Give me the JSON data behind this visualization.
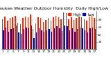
{
  "title": "Milwaukee Weather Outdoor Humidity",
  "subtitle": "Daily High/Low",
  "legend_high": "High",
  "legend_low": "Low",
  "color_high": "#ff2200",
  "color_low": "#0000cc",
  "background_color": "#ffffff",
  "ylabel_right_values": [
    20,
    40,
    60,
    80
  ],
  "ylim": [
    0,
    105
  ],
  "highs": [
    82,
    90,
    78,
    85,
    88,
    92,
    72,
    68,
    85,
    90,
    88,
    95,
    55,
    70,
    88,
    85,
    75,
    80,
    85,
    78,
    88,
    92,
    88,
    82,
    100,
    98,
    82,
    88,
    80,
    85,
    90,
    88,
    82,
    78,
    90,
    92,
    85
  ],
  "lows": [
    52,
    60,
    48,
    55,
    58,
    65,
    45,
    42,
    55,
    60,
    58,
    65,
    30,
    45,
    58,
    52,
    48,
    52,
    55,
    48,
    58,
    62,
    58,
    50,
    65,
    62,
    52,
    58,
    48,
    55,
    60,
    58,
    52,
    45,
    58,
    60,
    55
  ],
  "dotted_vline_x": 24,
  "title_fontsize": 4.5,
  "tick_fontsize": 3.0,
  "legend_fontsize": 3.5,
  "bar_width": 0.38,
  "figsize": [
    1.6,
    0.87
  ],
  "dpi": 100
}
